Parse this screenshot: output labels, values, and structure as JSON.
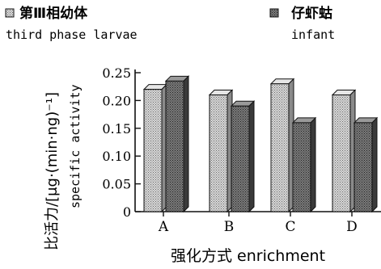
{
  "chart_data": {
    "type": "bar",
    "categories": [
      "A",
      "B",
      "C",
      "D"
    ],
    "series": [
      {
        "name": "第Ⅲ相幼体",
        "name_en": "third phase larvae",
        "values": [
          0.22,
          0.21,
          0.23,
          0.21
        ]
      },
      {
        "name": "仔虾蛄",
        "name_en": "infant",
        "values": [
          0.235,
          0.19,
          0.16,
          0.16
        ]
      }
    ],
    "xlabel": "强化方式 enrichment",
    "ylabel_cn": "比活力/[μg·(min·ng)⁻¹]",
    "ylabel_en": "specific activity",
    "yticks": [
      "0",
      "0.05",
      "0.10",
      "0.15",
      "0.20",
      "0.25"
    ],
    "ylim": [
      0,
      0.25
    ],
    "legend_position": "top",
    "colors": {
      "series1": "#b8b8b8",
      "series2": "#6e6e6e",
      "axis": "#111111"
    }
  }
}
